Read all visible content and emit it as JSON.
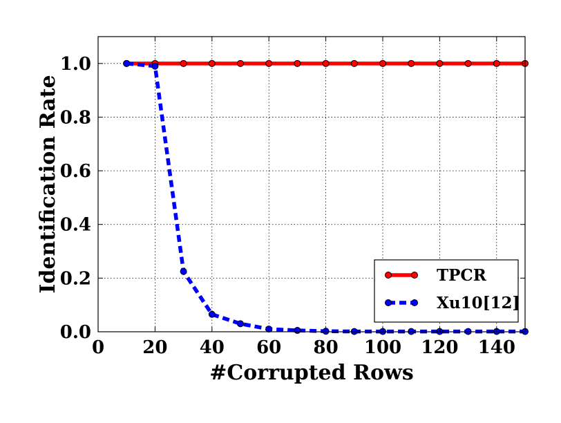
{
  "chart_data": {
    "type": "line",
    "title": "",
    "xlabel": "#Corrupted Rows",
    "ylabel": "Identification Rate",
    "xlim": [
      0,
      150
    ],
    "ylim": [
      0.0,
      1.1
    ],
    "xticks": [
      0,
      20,
      40,
      60,
      80,
      100,
      120,
      140
    ],
    "xtick_labels": [
      "0",
      "20",
      "40",
      "60",
      "80",
      "100",
      "120",
      "140"
    ],
    "yticks": [
      0.0,
      0.2,
      0.4,
      0.6,
      0.8,
      1.0
    ],
    "ytick_labels": [
      "0.0",
      "0.2",
      "0.4",
      "0.6",
      "0.8",
      "1.0"
    ],
    "grid": true,
    "legend_position": "lower-right",
    "x": [
      10,
      20,
      30,
      40,
      50,
      60,
      70,
      80,
      90,
      100,
      110,
      120,
      130,
      140,
      150
    ],
    "series": [
      {
        "name": "TPCR",
        "color": "#ff0000",
        "line_style": "solid",
        "marker": "circle",
        "values": [
          1.0,
          1.0,
          1.0,
          1.0,
          1.0,
          1.0,
          1.0,
          1.0,
          1.0,
          1.0,
          1.0,
          1.0,
          1.0,
          1.0,
          1.0
        ]
      },
      {
        "name": "Xu10[12]",
        "color": "#0000ff",
        "line_style": "dashed",
        "marker": "circle",
        "values": [
          1.0,
          0.99,
          0.225,
          0.065,
          0.03,
          0.01,
          0.005,
          0.002,
          0.001,
          0.001,
          0.001,
          0.001,
          0.001,
          0.001,
          0.001
        ]
      }
    ]
  }
}
